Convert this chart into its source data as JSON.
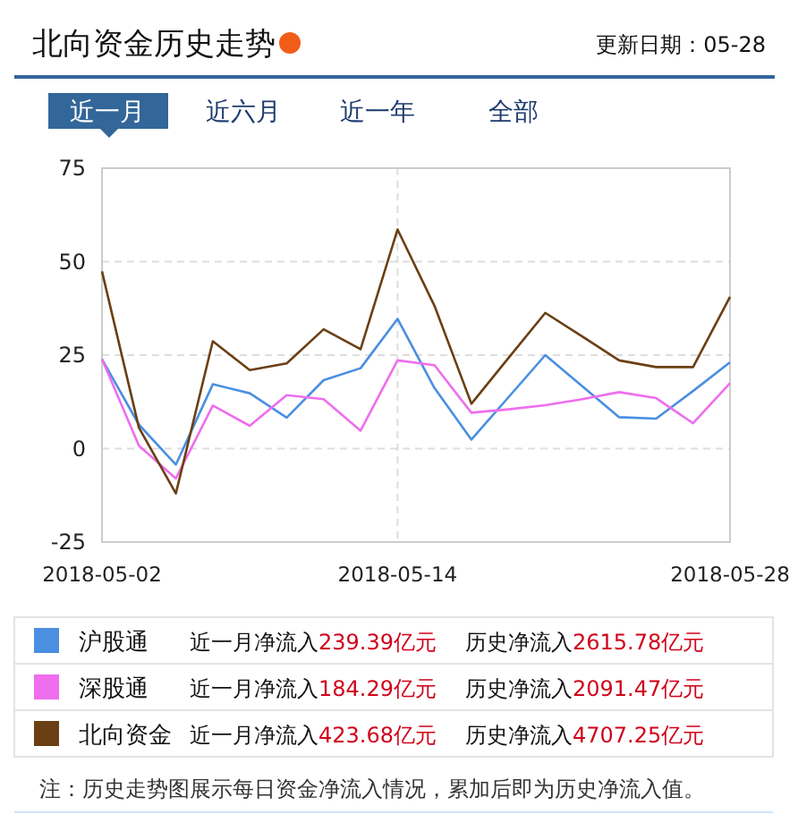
{
  "chart_data": {
    "type": "line",
    "title": "北向资金历史走势",
    "subtitle": "更新日期：05-28",
    "categories": [
      "2018-05-02",
      null,
      null,
      null,
      null,
      null,
      null,
      null,
      "2018-05-14",
      null,
      null,
      null,
      null,
      null,
      null,
      null,
      null,
      "2018-05-28"
    ],
    "series": [
      {
        "name": "沪股通",
        "color": "#4a8fe0",
        "values": [
          23.9,
          6.4,
          -4.3,
          17.2,
          14.8,
          8.3,
          18.3,
          21.5,
          34.7,
          16.2,
          2.4,
          13.7,
          25,
          16.7,
          8.4,
          8,
          15.4,
          23.1
        ]
      },
      {
        "name": "深股通",
        "color": "#ee6eee",
        "values": [
          23.9,
          0.8,
          -8,
          11.5,
          6.1,
          14.3,
          13.2,
          4.8,
          23.6,
          22.3,
          9.6,
          10.5,
          11.6,
          13.2,
          15.1,
          13.5,
          6.8,
          17.5
        ]
      },
      {
        "name": "北向资金",
        "color": "#6b3f14",
        "values": [
          47.4,
          5.6,
          -12,
          28.7,
          21,
          22.8,
          31.9,
          26.6,
          58.6,
          38.2,
          12,
          24.2,
          36.3,
          30,
          23.6,
          21.8,
          21.8,
          40.6
        ]
      }
    ],
    "ylim": [
      -25,
      75
    ],
    "yticks": [
      -25,
      0,
      25,
      50,
      75
    ],
    "grid": true,
    "legend": "bottom",
    "marker": "none",
    "line_style": "solid",
    "annotations": [
      "近一月",
      "近六月",
      "近一年",
      "全部",
      "近一月净流入239.39亿元",
      "历史净流入2615.78亿元",
      "近一月净流入184.29亿元",
      "历史净流入2091.47亿元",
      "近一月净流入423.68亿元",
      "历史净流入4707.25亿元",
      "注：历史走势图展示每日资金净流入情况，累加后即为历史净流入值。"
    ]
  }
}
